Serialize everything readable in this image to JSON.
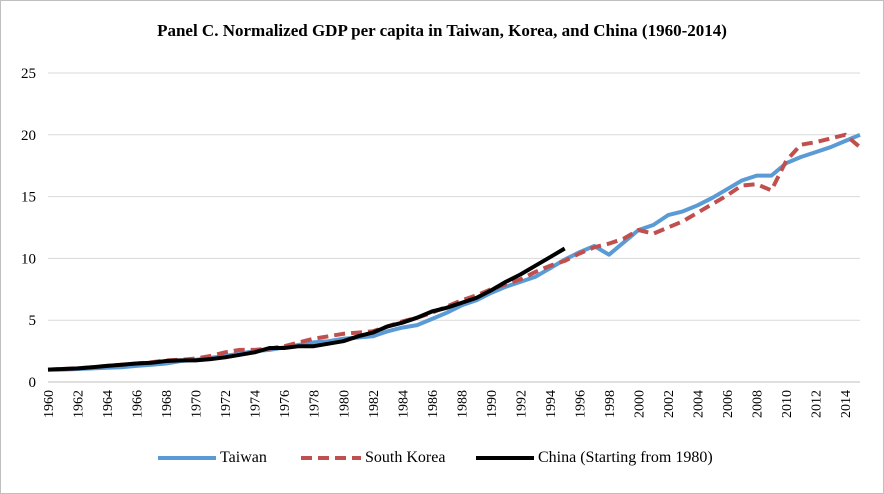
{
  "chart_data": {
    "type": "line",
    "title": "Panel C. Normalized GDP per capita in Taiwan, Korea, and China (1960-2014)",
    "xlabel": "",
    "ylabel": "",
    "xlim": [
      1960,
      2015
    ],
    "ylim": [
      0,
      25
    ],
    "yticks": [
      0,
      5,
      10,
      15,
      20,
      25
    ],
    "xtick_labels": [
      "1960",
      "1962",
      "1964",
      "1966",
      "1968",
      "1970",
      "1972",
      "1974",
      "1976",
      "1978",
      "1980",
      "1982",
      "1984",
      "1986",
      "1988",
      "1990",
      "1992",
      "1994",
      "1996",
      "1998",
      "2000",
      "2002",
      "2004",
      "2006",
      "2008",
      "2010",
      "2012",
      "2014"
    ],
    "legend_position": "bottom",
    "grid": "horizontal",
    "series": [
      {
        "name": "Taiwan",
        "color": "#5b9bd5",
        "style": "solid",
        "x": [
          1960,
          1961,
          1962,
          1963,
          1964,
          1965,
          1966,
          1967,
          1968,
          1969,
          1970,
          1971,
          1972,
          1973,
          1974,
          1975,
          1976,
          1977,
          1978,
          1979,
          1980,
          1981,
          1982,
          1983,
          1984,
          1985,
          1986,
          1987,
          1988,
          1989,
          1990,
          1991,
          1992,
          1993,
          1994,
          1995,
          1996,
          1997,
          1998,
          1999,
          2000,
          2001,
          2002,
          2003,
          2004,
          2005,
          2006,
          2007,
          2008,
          2009,
          2010,
          2011,
          2012,
          2013,
          2014,
          2015
        ],
        "values": [
          1.0,
          1.0,
          1.05,
          1.1,
          1.15,
          1.2,
          1.3,
          1.4,
          1.5,
          1.7,
          1.8,
          1.95,
          2.1,
          2.3,
          2.5,
          2.6,
          2.8,
          3.0,
          3.2,
          3.3,
          3.5,
          3.6,
          3.7,
          4.1,
          4.4,
          4.6,
          5.1,
          5.6,
          6.2,
          6.6,
          7.2,
          7.7,
          8.1,
          8.5,
          9.2,
          9.9,
          10.5,
          11.0,
          10.3,
          11.3,
          12.3,
          12.7,
          13.5,
          13.8,
          14.3,
          14.9,
          15.6,
          16.3,
          16.7,
          16.7,
          17.7,
          18.2,
          18.6,
          19.0,
          19.5,
          20.0
        ]
      },
      {
        "name": "South Korea",
        "color": "#c0504d",
        "style": "dashed",
        "x": [
          1960,
          1961,
          1962,
          1963,
          1964,
          1965,
          1966,
          1967,
          1968,
          1969,
          1970,
          1971,
          1972,
          1973,
          1974,
          1975,
          1976,
          1977,
          1978,
          1979,
          1980,
          1981,
          1982,
          1983,
          1984,
          1985,
          1986,
          1987,
          1988,
          1989,
          1990,
          1991,
          1992,
          1993,
          1994,
          1995,
          1996,
          1997,
          1998,
          1999,
          2000,
          2001,
          2002,
          2003,
          2004,
          2005,
          2006,
          2007,
          2008,
          2009,
          2010,
          2011,
          2012,
          2013,
          2014,
          2015
        ],
        "values": [
          1.0,
          1.05,
          1.1,
          1.2,
          1.3,
          1.4,
          1.5,
          1.6,
          1.75,
          1.8,
          1.9,
          2.1,
          2.4,
          2.6,
          2.6,
          2.7,
          2.9,
          3.2,
          3.5,
          3.7,
          3.9,
          4.0,
          4.1,
          4.5,
          4.9,
          5.2,
          5.6,
          6.1,
          6.6,
          7.0,
          7.5,
          7.9,
          8.3,
          8.9,
          9.4,
          9.8,
          10.4,
          10.9,
          11.2,
          11.6,
          12.3,
          12.0,
          12.5,
          13.0,
          13.7,
          14.4,
          15.1,
          15.9,
          16.0,
          15.5,
          17.9,
          19.2,
          19.4,
          19.7,
          20.0,
          19.0
        ]
      },
      {
        "name": "China (Starting from 1980)",
        "color": "#000000",
        "style": "solid",
        "x": [
          1960,
          1961,
          1962,
          1963,
          1964,
          1965,
          1966,
          1967,
          1968,
          1969,
          1970,
          1971,
          1972,
          1973,
          1974,
          1975,
          1976,
          1977,
          1978,
          1979,
          1980,
          1981,
          1982,
          1983,
          1984,
          1985,
          1986,
          1987,
          1988,
          1989,
          1990,
          1991,
          1992,
          1993,
          1994,
          1995
        ],
        "values": [
          1.0,
          1.05,
          1.1,
          1.2,
          1.3,
          1.4,
          1.5,
          1.55,
          1.7,
          1.75,
          1.75,
          1.85,
          2.0,
          2.2,
          2.4,
          2.75,
          2.75,
          2.9,
          2.9,
          3.1,
          3.3,
          3.7,
          4.0,
          4.5,
          4.8,
          5.2,
          5.7,
          6.0,
          6.4,
          6.8,
          7.4,
          8.1,
          8.7,
          9.4,
          10.1,
          10.8
        ]
      }
    ]
  }
}
